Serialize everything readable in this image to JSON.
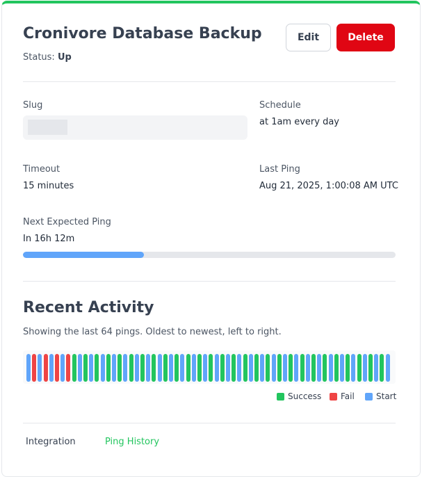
{
  "header": {
    "title": "Cronivore Database Backup",
    "status_label": "Status:",
    "status_value": "Up",
    "edit_label": "Edit",
    "delete_label": "Delete"
  },
  "details": {
    "slug_label": "Slug",
    "schedule_label": "Schedule",
    "schedule_value": "at 1am every day",
    "timeout_label": "Timeout",
    "timeout_value": "15 minutes",
    "last_ping_label": "Last Ping",
    "last_ping_value": "Aug 21, 2025, 1:00:08 AM UTC",
    "next_ping_label": "Next Expected Ping",
    "next_ping_value": "In 16h 12m",
    "next_ping_progress": 0.325
  },
  "activity": {
    "heading": "Recent Activity",
    "description": "Showing the last 64 pings. Oldest to newest, left to right.",
    "pings": [
      "start",
      "fail",
      "start",
      "fail",
      "start",
      "fail",
      "start",
      "fail",
      "success",
      "start",
      "success",
      "start",
      "success",
      "start",
      "success",
      "start",
      "success",
      "start",
      "success",
      "start",
      "success",
      "start",
      "success",
      "start",
      "success",
      "start",
      "success",
      "start",
      "success",
      "start",
      "success",
      "start",
      "success",
      "start",
      "success",
      "start",
      "success",
      "start",
      "success",
      "start",
      "success",
      "start",
      "success",
      "start",
      "success",
      "start",
      "success",
      "start",
      "success",
      "start",
      "success",
      "start",
      "success",
      "start",
      "success",
      "start",
      "success",
      "start",
      "success",
      "start",
      "success",
      "start",
      "success",
      "start"
    ],
    "legend": [
      {
        "label": "Success",
        "color": "#22c55e"
      },
      {
        "label": "Fail",
        "color": "#ef4444"
      },
      {
        "label": "Start",
        "color": "#60a5fa"
      }
    ]
  },
  "tabs": {
    "integration": "Integration",
    "ping_history": "Ping History"
  },
  "colors": {
    "accent_green": "#22c55e",
    "danger": "#e00613",
    "success": "#22c55e",
    "fail": "#ef4444",
    "start": "#60a5fa"
  }
}
